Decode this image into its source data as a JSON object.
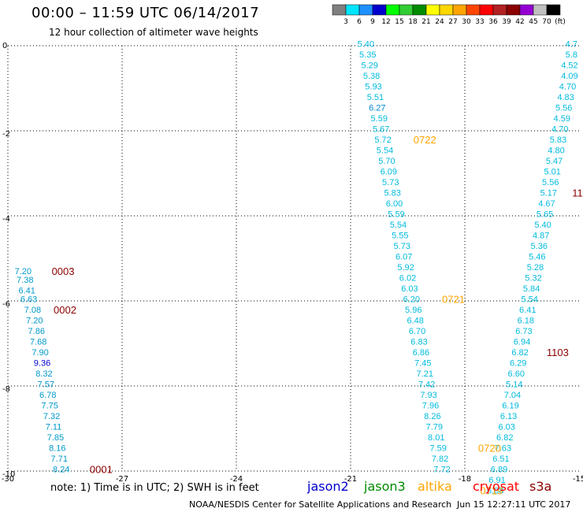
{
  "header": {
    "title": "00:00 – 11:59 UTC 06/14/2017",
    "subtitle": "12 hour collection of altimeter wave heights"
  },
  "colorbar": {
    "colors": [
      "#808080",
      "#00e5ff",
      "#1e90ff",
      "#0000cd",
      "#00ff00",
      "#32cd32",
      "#008b00",
      "#ffff00",
      "#ffd700",
      "#ffa500",
      "#ff4500",
      "#ff0000",
      "#b22222",
      "#8b0000",
      "#9400d3",
      "#c0c0c0",
      "#000000"
    ],
    "labels": [
      "3",
      "6",
      "9",
      "12",
      "15",
      "18",
      "21",
      "24",
      "27",
      "30",
      "33",
      "36",
      "39",
      "42",
      "45",
      "70",
      "(ft)"
    ]
  },
  "footer": {
    "note": "note:  1) Time is in UTC;  2) SWH is in feet",
    "center": "NOAA/NESDIS Center for Satellite Applications and Research",
    "date": "Jun 15 12:27:11 UTC 2017"
  },
  "satellites": [
    {
      "name": "jason2",
      "color": "#0000cd"
    },
    {
      "name": "jason3",
      "color": "#008b00"
    },
    {
      "name": "altika",
      "color": "#ffa500"
    },
    {
      "name": "cryosat",
      "color": "#ff0000"
    },
    {
      "name": "s3a",
      "color": "#8b0000"
    }
  ],
  "chart_data": {
    "type": "scatter",
    "xlim": [
      -30,
      -15
    ],
    "ylim": [
      -10,
      0
    ],
    "x_ticks": [
      "-30",
      "-27",
      "-24",
      "-21",
      "-18",
      "-15"
    ],
    "y_ticks": [
      "0",
      "-2",
      "-4",
      "-6",
      "-8",
      "-10"
    ],
    "grid": true,
    "tracks": [
      {
        "color": "#0099cc",
        "points": [
          {
            "x": -29.6,
            "y": -5.3,
            "v": "7.20"
          },
          {
            "x": -29.55,
            "y": -5.5,
            "v": "7.38"
          },
          {
            "x": -29.5,
            "y": -5.75,
            "v": "6.41"
          },
          {
            "x": -29.45,
            "y": -5.95,
            "v": "6.63"
          },
          {
            "x": -29.35,
            "y": -6.2,
            "v": "7.08"
          },
          {
            "x": -29.3,
            "y": -6.45,
            "v": "7.20"
          },
          {
            "x": -29.25,
            "y": -6.7,
            "v": "7.86"
          },
          {
            "x": -29.2,
            "y": -6.95,
            "v": "7.68"
          },
          {
            "x": -29.15,
            "y": -7.2,
            "v": "7.90"
          },
          {
            "x": -29.1,
            "y": -7.45,
            "v": "9.36",
            "c": "#0000cd"
          },
          {
            "x": -29.05,
            "y": -7.7,
            "v": "8.32"
          },
          {
            "x": -29.0,
            "y": -7.95,
            "v": "7.57"
          },
          {
            "x": -28.95,
            "y": -8.2,
            "v": "6.78"
          },
          {
            "x": -28.9,
            "y": -8.45,
            "v": "7.75"
          },
          {
            "x": -28.85,
            "y": -8.7,
            "v": "7.32"
          },
          {
            "x": -28.8,
            "y": -8.95,
            "v": "7.11"
          },
          {
            "x": -28.75,
            "y": -9.2,
            "v": "7.85"
          },
          {
            "x": -28.7,
            "y": -9.45,
            "v": "8.16"
          },
          {
            "x": -28.65,
            "y": -9.7,
            "v": "7.71"
          },
          {
            "x": -28.6,
            "y": -9.95,
            "v": "8.24"
          }
        ]
      },
      {
        "color": "#00bbdd",
        "points": [
          {
            "x": -20.6,
            "y": 0.05,
            "v": "5.40"
          },
          {
            "x": -20.55,
            "y": -0.2,
            "v": "5.35"
          },
          {
            "x": -20.5,
            "y": -0.45,
            "v": "5.29"
          },
          {
            "x": -20.45,
            "y": -0.7,
            "v": "5.38"
          },
          {
            "x": -20.4,
            "y": -0.95,
            "v": "5.93"
          },
          {
            "x": -20.35,
            "y": -1.2,
            "v": "5.51"
          },
          {
            "x": -20.3,
            "y": -1.45,
            "v": "6.27",
            "c": "#0088cc"
          },
          {
            "x": -20.25,
            "y": -1.7,
            "v": "5.59"
          },
          {
            "x": -20.2,
            "y": -1.95,
            "v": "5.67"
          },
          {
            "x": -20.15,
            "y": -2.2,
            "v": "5.72"
          },
          {
            "x": -20.1,
            "y": -2.45,
            "v": "5.54"
          },
          {
            "x": -20.05,
            "y": -2.7,
            "v": "5.70"
          },
          {
            "x": -20.0,
            "y": -2.95,
            "v": "6.09"
          },
          {
            "x": -19.95,
            "y": -3.2,
            "v": "5.73"
          },
          {
            "x": -19.9,
            "y": -3.45,
            "v": "5.83"
          },
          {
            "x": -19.85,
            "y": -3.7,
            "v": "6.00"
          },
          {
            "x": -19.8,
            "y": -3.95,
            "v": "5.59"
          },
          {
            "x": -19.75,
            "y": -4.2,
            "v": "5.54"
          },
          {
            "x": -19.7,
            "y": -4.45,
            "v": "5.55"
          },
          {
            "x": -19.65,
            "y": -4.7,
            "v": "5.73"
          },
          {
            "x": -19.6,
            "y": -4.95,
            "v": "6.07"
          },
          {
            "x": -19.55,
            "y": -5.2,
            "v": "5.92"
          },
          {
            "x": -19.5,
            "y": -5.45,
            "v": "6.02"
          },
          {
            "x": -19.45,
            "y": -5.7,
            "v": "6.03"
          },
          {
            "x": -19.4,
            "y": -5.95,
            "v": "6.20"
          },
          {
            "x": -19.35,
            "y": -6.2,
            "v": "5.96"
          },
          {
            "x": -19.3,
            "y": -6.45,
            "v": "6.48"
          },
          {
            "x": -19.25,
            "y": -6.7,
            "v": "6.70"
          },
          {
            "x": -19.2,
            "y": -6.95,
            "v": "6.83"
          },
          {
            "x": -19.15,
            "y": -7.2,
            "v": "6.86"
          },
          {
            "x": -19.1,
            "y": -7.45,
            "v": "7.45"
          },
          {
            "x": -19.05,
            "y": -7.7,
            "v": "7.21"
          },
          {
            "x": -19.0,
            "y": -7.95,
            "v": "7.42"
          },
          {
            "x": -18.95,
            "y": -8.2,
            "v": "7.93"
          },
          {
            "x": -18.9,
            "y": -8.45,
            "v": "7.96"
          },
          {
            "x": -18.85,
            "y": -8.7,
            "v": "8.26"
          },
          {
            "x": -18.8,
            "y": -8.95,
            "v": "7.79"
          },
          {
            "x": -18.75,
            "y": -9.2,
            "v": "8.01"
          },
          {
            "x": -18.7,
            "y": -9.45,
            "v": "7.59"
          },
          {
            "x": -18.65,
            "y": -9.7,
            "v": "7.82"
          },
          {
            "x": -18.6,
            "y": -9.95,
            "v": "7.72"
          }
        ]
      },
      {
        "color": "#00bbdd",
        "points": [
          {
            "x": -15.2,
            "y": 0.05,
            "v": "4.7"
          },
          {
            "x": -15.2,
            "y": -0.2,
            "v": "5.8"
          },
          {
            "x": -15.25,
            "y": -0.45,
            "v": "4.52"
          },
          {
            "x": -15.25,
            "y": -0.7,
            "v": "4.09"
          },
          {
            "x": -15.3,
            "y": -0.95,
            "v": "4.70"
          },
          {
            "x": -15.35,
            "y": -1.2,
            "v": "4.83"
          },
          {
            "x": -15.4,
            "y": -1.45,
            "v": "5.56"
          },
          {
            "x": -15.45,
            "y": -1.7,
            "v": "4.59"
          },
          {
            "x": -15.5,
            "y": -1.95,
            "v": "4.70"
          },
          {
            "x": -15.55,
            "y": -2.2,
            "v": "5.83"
          },
          {
            "x": -15.6,
            "y": -2.45,
            "v": "4.80"
          },
          {
            "x": -15.65,
            "y": -2.7,
            "v": "5.47"
          },
          {
            "x": -15.7,
            "y": -2.95,
            "v": "5.01"
          },
          {
            "x": -15.75,
            "y": -3.2,
            "v": "5.56"
          },
          {
            "x": -15.8,
            "y": -3.45,
            "v": "5.17"
          },
          {
            "x": -15.85,
            "y": -3.7,
            "v": "4.67"
          },
          {
            "x": -15.9,
            "y": -3.95,
            "v": "5.65"
          },
          {
            "x": -15.95,
            "y": -4.2,
            "v": "5.40"
          },
          {
            "x": -16.0,
            "y": -4.45,
            "v": "4.87"
          },
          {
            "x": -16.05,
            "y": -4.7,
            "v": "5.36"
          },
          {
            "x": -16.1,
            "y": -4.95,
            "v": "5.46"
          },
          {
            "x": -16.15,
            "y": -5.2,
            "v": "5.28"
          },
          {
            "x": -16.2,
            "y": -5.45,
            "v": "5.32"
          },
          {
            "x": -16.25,
            "y": -5.7,
            "v": "5.84"
          },
          {
            "x": -16.3,
            "y": -5.95,
            "v": "5.54"
          },
          {
            "x": -16.35,
            "y": -6.2,
            "v": "6.41"
          },
          {
            "x": -16.4,
            "y": -6.45,
            "v": "6.18"
          },
          {
            "x": -16.45,
            "y": -6.7,
            "v": "6.73"
          },
          {
            "x": -16.5,
            "y": -6.95,
            "v": "6.94"
          },
          {
            "x": -16.55,
            "y": -7.2,
            "v": "6.82"
          },
          {
            "x": -16.6,
            "y": -7.45,
            "v": "6.29"
          },
          {
            "x": -16.65,
            "y": -7.7,
            "v": "6.60"
          },
          {
            "x": -16.7,
            "y": -7.95,
            "v": "5.14"
          },
          {
            "x": -16.75,
            "y": -8.2,
            "v": "7.04"
          },
          {
            "x": -16.8,
            "y": -8.45,
            "v": "6.19"
          },
          {
            "x": -16.85,
            "y": -8.7,
            "v": "6.13"
          },
          {
            "x": -16.9,
            "y": -8.95,
            "v": "6.03"
          },
          {
            "x": -16.95,
            "y": -9.2,
            "v": "6.82"
          },
          {
            "x": -17.0,
            "y": -9.45,
            "v": "7.63"
          },
          {
            "x": -17.05,
            "y": -9.7,
            "v": "6.51"
          },
          {
            "x": -17.1,
            "y": -9.95,
            "v": "6.89"
          },
          {
            "x": -17.15,
            "y": -10.2,
            "v": "6.91"
          },
          {
            "x": -17.2,
            "y": -10.45,
            "v": "6.08"
          }
        ]
      }
    ],
    "time_labels": [
      {
        "x": -28.85,
        "y": -5.3,
        "v": "0003",
        "color": "#8b0000"
      },
      {
        "x": -28.8,
        "y": -6.2,
        "v": "0002",
        "color": "#8b0000"
      },
      {
        "x": -27.85,
        "y": -9.95,
        "v": "0001",
        "color": "#8b0000"
      },
      {
        "x": -19.35,
        "y": -2.2,
        "v": "0722",
        "color": "#ffa500"
      },
      {
        "x": -18.6,
        "y": -5.95,
        "v": "0721",
        "color": "#ffa500"
      },
      {
        "x": -17.65,
        "y": -9.45,
        "v": "0720",
        "color": "#ffa500"
      },
      {
        "x": -17.6,
        "y": -10.45,
        "v": "0719",
        "color": "#ffa500"
      },
      {
        "x": -15.85,
        "y": -7.2,
        "v": "1103",
        "color": "#8b0000"
      },
      {
        "x": -15.18,
        "y": -3.45,
        "v": "11",
        "color": "#8b0000"
      }
    ]
  }
}
